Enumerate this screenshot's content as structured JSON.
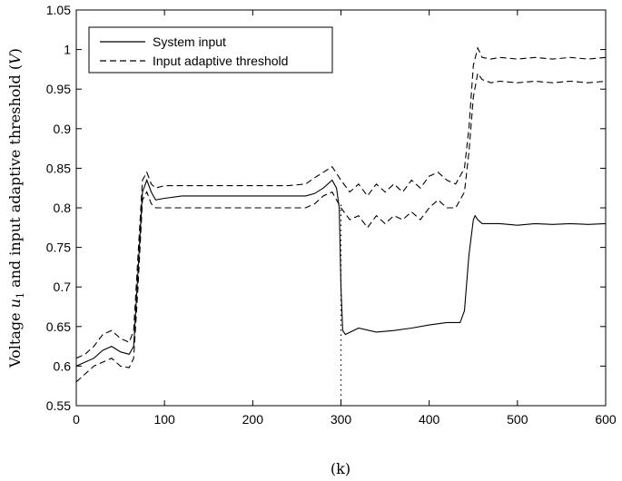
{
  "chart_data": {
    "type": "line",
    "xlabel": "(k)",
    "ylabel": "Voltage u1 and input adaptive threshold (V)",
    "ylabel_parts": {
      "pre": "Voltage ",
      "var": "u",
      "sub": "1",
      "mid": " and input adaptive threshold (",
      "unit": "V",
      "post": ")"
    },
    "xlim": [
      0,
      600
    ],
    "ylim": [
      0.55,
      1.05
    ],
    "xticks": [
      0,
      100,
      200,
      300,
      400,
      500,
      600
    ],
    "yticks": [
      0.55,
      0.6,
      0.65,
      0.7,
      0.75,
      0.8,
      0.85,
      0.9,
      0.95,
      1,
      1.05
    ],
    "ytick_labels": [
      "0.55",
      "0.6",
      "0.65",
      "0.7",
      "0.75",
      "0.8",
      "0.85",
      "0.9",
      "0.95",
      "1",
      "1.05"
    ],
    "grid": false,
    "legend_placement": "top-left",
    "annotation": {
      "type": "vertical-dotted-line",
      "x": 300,
      "y_from": 0.55,
      "y_to": 0.805
    },
    "series": [
      {
        "name": "System input",
        "style": "solid",
        "points": [
          [
            0,
            0.6
          ],
          [
            10,
            0.605
          ],
          [
            20,
            0.61
          ],
          [
            30,
            0.62
          ],
          [
            40,
            0.625
          ],
          [
            50,
            0.618
          ],
          [
            60,
            0.615
          ],
          [
            65,
            0.625
          ],
          [
            70,
            0.72
          ],
          [
            75,
            0.82
          ],
          [
            80,
            0.835
          ],
          [
            85,
            0.82
          ],
          [
            90,
            0.81
          ],
          [
            100,
            0.812
          ],
          [
            120,
            0.815
          ],
          [
            140,
            0.815
          ],
          [
            160,
            0.815
          ],
          [
            180,
            0.815
          ],
          [
            200,
            0.815
          ],
          [
            220,
            0.815
          ],
          [
            240,
            0.815
          ],
          [
            260,
            0.815
          ],
          [
            270,
            0.818
          ],
          [
            280,
            0.825
          ],
          [
            290,
            0.835
          ],
          [
            295,
            0.825
          ],
          [
            298,
            0.8
          ],
          [
            300,
            0.7
          ],
          [
            302,
            0.645
          ],
          [
            305,
            0.64
          ],
          [
            320,
            0.648
          ],
          [
            340,
            0.643
          ],
          [
            360,
            0.645
          ],
          [
            380,
            0.648
          ],
          [
            400,
            0.652
          ],
          [
            420,
            0.655
          ],
          [
            435,
            0.655
          ],
          [
            440,
            0.67
          ],
          [
            445,
            0.74
          ],
          [
            450,
            0.785
          ],
          [
            452,
            0.79
          ],
          [
            455,
            0.785
          ],
          [
            460,
            0.78
          ],
          [
            480,
            0.78
          ],
          [
            500,
            0.778
          ],
          [
            520,
            0.78
          ],
          [
            540,
            0.779
          ],
          [
            560,
            0.78
          ],
          [
            580,
            0.779
          ],
          [
            600,
            0.78
          ]
        ]
      },
      {
        "name": "Input adaptive threshold",
        "style": "dashed",
        "points": [
          [
            0,
            0.61
          ],
          [
            10,
            0.615
          ],
          [
            20,
            0.625
          ],
          [
            30,
            0.64
          ],
          [
            40,
            0.645
          ],
          [
            50,
            0.635
          ],
          [
            60,
            0.63
          ],
          [
            65,
            0.645
          ],
          [
            70,
            0.74
          ],
          [
            75,
            0.835
          ],
          [
            80,
            0.845
          ],
          [
            85,
            0.83
          ],
          [
            90,
            0.825
          ],
          [
            100,
            0.828
          ],
          [
            120,
            0.828
          ],
          [
            140,
            0.828
          ],
          [
            160,
            0.828
          ],
          [
            180,
            0.828
          ],
          [
            200,
            0.828
          ],
          [
            220,
            0.828
          ],
          [
            240,
            0.828
          ],
          [
            260,
            0.83
          ],
          [
            270,
            0.838
          ],
          [
            280,
            0.845
          ],
          [
            290,
            0.852
          ],
          [
            300,
            0.835
          ],
          [
            310,
            0.82
          ],
          [
            320,
            0.83
          ],
          [
            330,
            0.815
          ],
          [
            340,
            0.83
          ],
          [
            350,
            0.82
          ],
          [
            360,
            0.83
          ],
          [
            370,
            0.82
          ],
          [
            380,
            0.835
          ],
          [
            390,
            0.825
          ],
          [
            400,
            0.84
          ],
          [
            410,
            0.845
          ],
          [
            420,
            0.835
          ],
          [
            430,
            0.83
          ],
          [
            440,
            0.85
          ],
          [
            445,
            0.9
          ],
          [
            450,
            0.98
          ],
          [
            455,
            1.002
          ],
          [
            460,
            0.99
          ],
          [
            470,
            0.988
          ],
          [
            480,
            0.99
          ],
          [
            500,
            0.988
          ],
          [
            520,
            0.99
          ],
          [
            540,
            0.988
          ],
          [
            560,
            0.99
          ],
          [
            580,
            0.988
          ],
          [
            600,
            0.99
          ]
        ]
      },
      {
        "name": "",
        "style": "dashed",
        "points": [
          [
            0,
            0.58
          ],
          [
            10,
            0.59
          ],
          [
            20,
            0.6
          ],
          [
            30,
            0.605
          ],
          [
            40,
            0.61
          ],
          [
            50,
            0.6
          ],
          [
            60,
            0.598
          ],
          [
            65,
            0.61
          ],
          [
            70,
            0.7
          ],
          [
            75,
            0.81
          ],
          [
            80,
            0.82
          ],
          [
            85,
            0.805
          ],
          [
            90,
            0.8
          ],
          [
            100,
            0.8
          ],
          [
            120,
            0.8
          ],
          [
            140,
            0.8
          ],
          [
            160,
            0.8
          ],
          [
            180,
            0.8
          ],
          [
            200,
            0.8
          ],
          [
            220,
            0.8
          ],
          [
            240,
            0.8
          ],
          [
            260,
            0.8
          ],
          [
            270,
            0.805
          ],
          [
            280,
            0.815
          ],
          [
            290,
            0.82
          ],
          [
            300,
            0.8
          ],
          [
            310,
            0.785
          ],
          [
            320,
            0.79
          ],
          [
            330,
            0.775
          ],
          [
            340,
            0.79
          ],
          [
            350,
            0.78
          ],
          [
            360,
            0.79
          ],
          [
            370,
            0.785
          ],
          [
            380,
            0.795
          ],
          [
            390,
            0.785
          ],
          [
            400,
            0.8
          ],
          [
            410,
            0.81
          ],
          [
            420,
            0.8
          ],
          [
            430,
            0.8
          ],
          [
            440,
            0.82
          ],
          [
            445,
            0.87
          ],
          [
            450,
            0.94
          ],
          [
            455,
            0.97
          ],
          [
            460,
            0.962
          ],
          [
            470,
            0.958
          ],
          [
            480,
            0.96
          ],
          [
            500,
            0.958
          ],
          [
            520,
            0.96
          ],
          [
            540,
            0.958
          ],
          [
            560,
            0.96
          ],
          [
            580,
            0.958
          ],
          [
            600,
            0.96
          ]
        ]
      }
    ]
  }
}
